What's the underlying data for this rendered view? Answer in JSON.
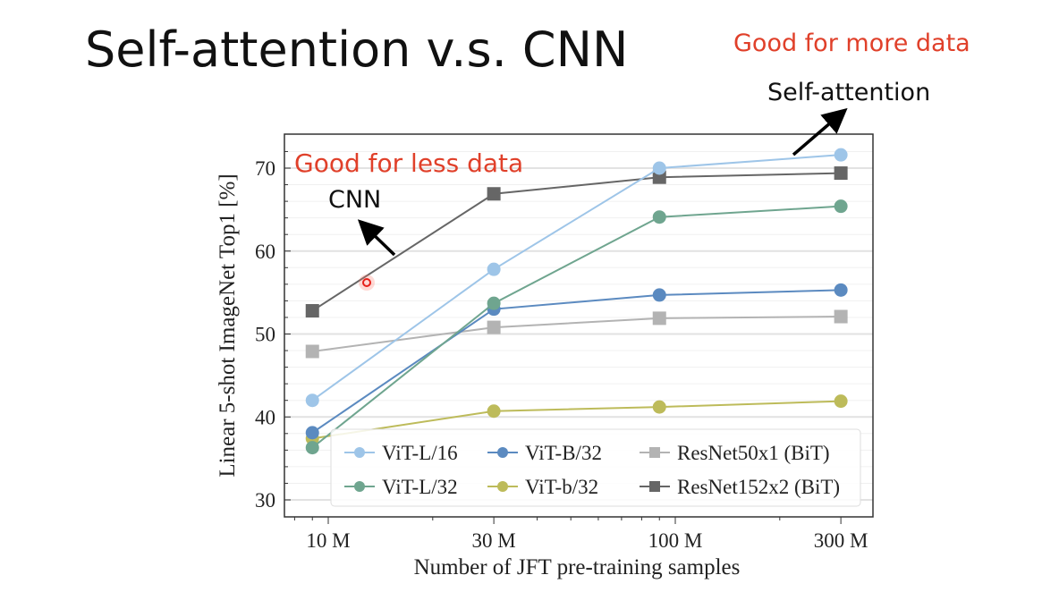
{
  "slide": {
    "title": "Self-attention v.s. CNN",
    "note_more_data": "Good for more data",
    "note_self_attention": "Self-attention",
    "note_less_data": "Good for less data",
    "note_cnn": "CNN",
    "accent_color": "#e0402a"
  },
  "chart_data": {
    "type": "line",
    "xlabel": "Number of JFT pre-training samples",
    "ylabel": "Linear 5-shot ImageNet Top1 [%]",
    "x_scale": "log",
    "x_ticks": [
      10,
      30,
      100,
      300
    ],
    "x_tick_labels": [
      "10 M",
      "30 M",
      "100 M",
      "300 M"
    ],
    "y_ticks": [
      30,
      40,
      50,
      60,
      70
    ],
    "y_tick_labels": [
      "30",
      "40",
      "50",
      "60",
      "70"
    ],
    "ylim": [
      28,
      74
    ],
    "grid": true,
    "legend_placement": "bottom-right",
    "x": [
      9,
      30,
      90,
      300
    ],
    "series": [
      {
        "name": "ViT-L/16",
        "marker": "circle",
        "color": "#9ec5e8",
        "values": [
          42.0,
          57.8,
          70.0,
          71.6
        ]
      },
      {
        "name": "ViT-B/32",
        "marker": "circle",
        "color": "#5b8ac0",
        "values": [
          38.1,
          53.0,
          54.7,
          55.3
        ]
      },
      {
        "name": "ResNet50x1 (BiT)",
        "marker": "square",
        "color": "#b3b3b3",
        "values": [
          47.9,
          50.8,
          51.9,
          52.1
        ]
      },
      {
        "name": "ViT-L/32",
        "marker": "circle",
        "color": "#6fa58f",
        "values": [
          36.3,
          53.7,
          64.1,
          65.4
        ]
      },
      {
        "name": "ViT-b/32",
        "marker": "circle",
        "color": "#bdbb5a",
        "values": [
          37.4,
          40.7,
          41.2,
          41.9
        ]
      },
      {
        "name": "ResNet152x2 (BiT)",
        "marker": "square",
        "color": "#666666",
        "values": [
          52.8,
          66.9,
          68.9,
          69.4
        ]
      }
    ]
  }
}
